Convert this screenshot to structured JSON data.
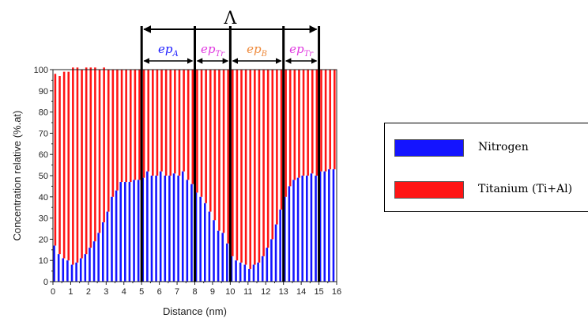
{
  "chart_data": {
    "type": "bar",
    "xlabel": "Distance (nm)",
    "ylabel": "Concentration relative (%.at)",
    "xlim": [
      0,
      16
    ],
    "ylim": [
      0,
      100
    ],
    "xticks": [
      0,
      1,
      2,
      3,
      4,
      5,
      6,
      7,
      8,
      9,
      10,
      11,
      12,
      13,
      14,
      15,
      16
    ],
    "yticks": [
      0,
      10,
      20,
      30,
      40,
      50,
      60,
      70,
      80,
      90,
      100
    ],
    "x": [
      0.1,
      0.35,
      0.6,
      0.85,
      1.1,
      1.35,
      1.6,
      1.85,
      2.1,
      2.35,
      2.6,
      2.85,
      3.1,
      3.35,
      3.6,
      3.85,
      4.1,
      4.35,
      4.6,
      4.85,
      5.1,
      5.35,
      5.6,
      5.85,
      6.1,
      6.35,
      6.6,
      6.85,
      7.1,
      7.35,
      7.6,
      7.85,
      8.1,
      8.35,
      8.6,
      8.85,
      9.1,
      9.35,
      9.6,
      9.85,
      10.1,
      10.35,
      10.6,
      10.85,
      11.1,
      11.35,
      11.6,
      11.85,
      12.1,
      12.35,
      12.6,
      12.85,
      13.1,
      13.35,
      13.6,
      13.85,
      14.1,
      14.35,
      14.6,
      14.85,
      15.1,
      15.35,
      15.6,
      15.85
    ],
    "series": [
      {
        "name": "Nitrogen",
        "color": "#1414ff",
        "values": [
          17,
          13,
          11,
          10,
          8,
          9,
          11,
          13,
          16,
          19,
          23,
          28,
          33,
          40,
          43,
          47,
          47,
          47,
          48,
          48,
          49,
          52,
          50,
          50,
          52,
          50,
          50,
          51,
          50,
          52,
          48,
          46,
          42,
          40,
          37,
          33,
          29,
          24,
          23,
          18,
          12,
          10,
          9,
          8,
          6,
          8,
          9,
          12,
          16,
          20,
          27,
          34,
          40,
          45,
          48,
          49,
          50,
          50,
          51,
          50,
          52,
          52,
          53,
          53
        ]
      },
      {
        "name": "Titanium (Ti+Al)",
        "color": "#ff1414",
        "values": [
          81,
          84,
          88,
          89,
          93,
          92,
          89,
          88,
          85,
          82,
          77,
          73,
          67,
          60,
          57,
          53,
          53,
          53,
          52,
          52,
          51,
          48,
          50,
          50,
          48,
          50,
          50,
          49,
          50,
          48,
          52,
          54,
          58,
          60,
          63,
          67,
          71,
          76,
          77,
          82,
          88,
          90,
          91,
          92,
          94,
          92,
          91,
          88,
          84,
          80,
          73,
          66,
          60,
          55,
          52,
          51,
          50,
          50,
          49,
          50,
          48,
          48,
          47,
          47
        ]
      }
    ],
    "boundaries": [
      5,
      8,
      10,
      13,
      15
    ],
    "period_label": "Λ",
    "segments": [
      {
        "from": 5,
        "to": 8,
        "base": "ep",
        "sub": "A",
        "color": "#1c1cff"
      },
      {
        "from": 8,
        "to": 10,
        "base": "ep",
        "sub": "Tr",
        "color": "#e03ae0"
      },
      {
        "from": 10,
        "to": 13,
        "base": "ep",
        "sub": "B",
        "color": "#ee8a3c"
      },
      {
        "from": 13,
        "to": 15,
        "base": "ep",
        "sub": "Tr",
        "color": "#e03ae0"
      }
    ],
    "legend": [
      {
        "label": "Nitrogen",
        "color": "#1414ff"
      },
      {
        "label": "Titanium (Ti+Al)",
        "color": "#ff1414"
      }
    ]
  }
}
